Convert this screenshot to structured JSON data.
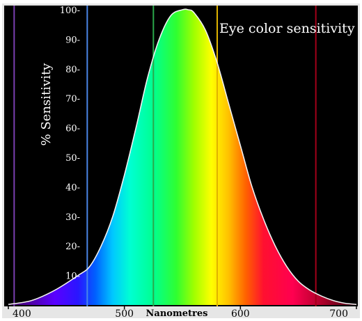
{
  "chart_data": {
    "type": "area",
    "title": "Eye color sensitivity",
    "xlabel": "Nanometres",
    "ylabel": "% Sensitivity",
    "xlim": [
      400,
      700
    ],
    "ylim": [
      0,
      100
    ],
    "x_ticks": [
      {
        "value": 400,
        "label": "400"
      },
      {
        "value": 500,
        "label": "500"
      },
      {
        "value": 600,
        "label": "600"
      },
      {
        "value": 700,
        "label": "700"
      }
    ],
    "y_ticks": [
      {
        "value": 10,
        "label": "10-"
      },
      {
        "value": 20,
        "label": "20-"
      },
      {
        "value": 30,
        "label": "30-"
      },
      {
        "value": 40,
        "label": "40-"
      },
      {
        "value": 50,
        "label": "50-"
      },
      {
        "value": 60,
        "label": "60-"
      },
      {
        "value": 70,
        "label": "70-"
      },
      {
        "value": 80,
        "label": "80-"
      },
      {
        "value": 90,
        "label": "90-"
      },
      {
        "value": 100,
        "label": "100-"
      }
    ],
    "x": [
      400,
      420,
      440,
      460,
      470,
      480,
      490,
      500,
      510,
      520,
      530,
      540,
      550,
      555,
      560,
      570,
      580,
      590,
      600,
      610,
      620,
      630,
      640,
      650,
      660,
      670,
      680,
      690,
      700
    ],
    "y": [
      0.2,
      1.5,
      5,
      10,
      13,
      20,
      30,
      44,
      60,
      77,
      90,
      98,
      100,
      100,
      99,
      93,
      82,
      68,
      54,
      40,
      29,
      20,
      13,
      8,
      5,
      3,
      1.5,
      0.6,
      0.2
    ],
    "reference_lines": [
      {
        "x": 405,
        "color": "#7a3fb0"
      },
      {
        "x": 468,
        "color": "#4a86e8"
      },
      {
        "x": 525,
        "color": "#2aa84a"
      },
      {
        "x": 580,
        "color": "#e0b300"
      },
      {
        "x": 665,
        "color": "#a3001a"
      }
    ],
    "spectrum_colors": [
      {
        "nm": 400,
        "color": "#3b0054"
      },
      {
        "nm": 420,
        "color": "#5000a8"
      },
      {
        "nm": 440,
        "color": "#5a00ff"
      },
      {
        "nm": 460,
        "color": "#2a16ff"
      },
      {
        "nm": 475,
        "color": "#0060ff"
      },
      {
        "nm": 490,
        "color": "#00c8ff"
      },
      {
        "nm": 505,
        "color": "#00ffd2"
      },
      {
        "nm": 525,
        "color": "#00ff90"
      },
      {
        "nm": 545,
        "color": "#30ff30"
      },
      {
        "nm": 560,
        "color": "#a0ff00"
      },
      {
        "nm": 575,
        "color": "#ffff00"
      },
      {
        "nm": 590,
        "color": "#ffc000"
      },
      {
        "nm": 605,
        "color": "#ff6000"
      },
      {
        "nm": 620,
        "color": "#ff1030"
      },
      {
        "nm": 645,
        "color": "#ff0050"
      },
      {
        "nm": 670,
        "color": "#b0002a"
      },
      {
        "nm": 700,
        "color": "#3a0012"
      }
    ],
    "background_color": "#000000",
    "curve_color": "#ffffff",
    "grid": false
  }
}
